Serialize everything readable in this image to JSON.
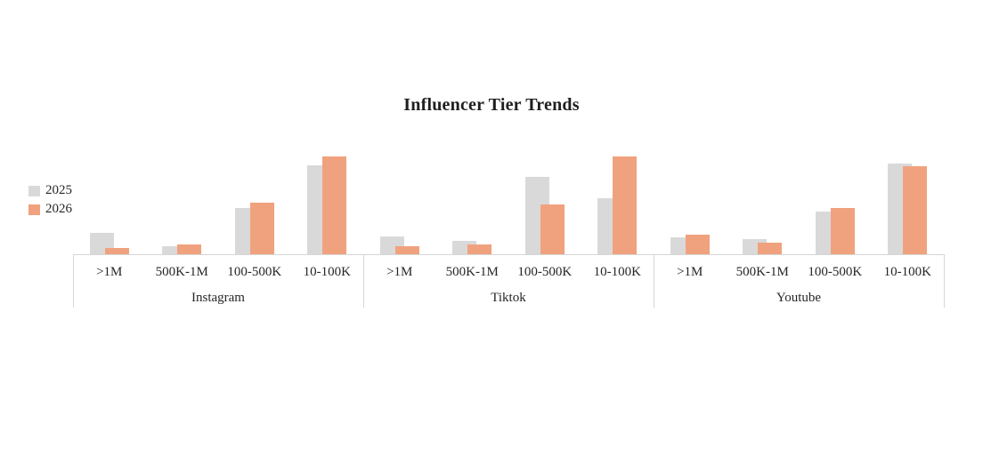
{
  "chart_data": {
    "type": "bar",
    "title": "Influencer Tier Trends",
    "legend_entries": [
      "2025",
      "2026"
    ],
    "legend_position": "middle-left",
    "categories_level1": [
      ">1M",
      "500K-1M",
      "100-500K",
      "10-100K"
    ],
    "categories_level2": [
      "Instagram",
      "Tiktok",
      "Youtube"
    ],
    "series": [
      {
        "name": "2025",
        "color": "#D9D9D9",
        "values": [
          [
            13,
            5,
            28,
            54
          ],
          [
            11,
            8,
            47,
            34
          ],
          [
            10,
            9,
            26,
            55
          ]
        ]
      },
      {
        "name": "2026",
        "color": "#F0A27E",
        "values": [
          [
            4,
            6,
            31,
            59
          ],
          [
            5,
            6,
            30,
            59
          ],
          [
            12,
            7,
            28,
            53
          ]
        ]
      }
    ],
    "value_note": "relative share per platform, estimated; no y-axis shown",
    "ylim": [
      0,
      62
    ],
    "y_axis_visible": false,
    "gridlines": false,
    "bar_style": "overlapped, 2026 drawn in front of 2025",
    "axis_color": "#D6D6D6",
    "text_color": "#262626"
  }
}
